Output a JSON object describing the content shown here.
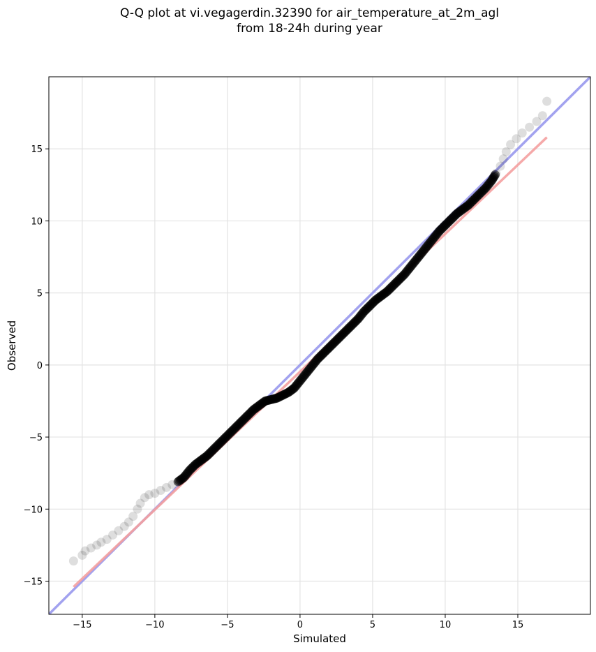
{
  "chart_data": {
    "type": "scatter",
    "title_line1": "Q-Q plot at vi.vegagerdin.32390 for air_temperature_at_2m_agl",
    "title_line2": "from 18-24h during year",
    "xlabel": "Simulated",
    "ylabel": "Observed",
    "xlim": [
      -17.3,
      20.0
    ],
    "ylim": [
      -17.3,
      20.0
    ],
    "xticks": [
      -15,
      -10,
      -5,
      0,
      5,
      10,
      15
    ],
    "yticks": [
      -15,
      -10,
      -5,
      0,
      5,
      10,
      15
    ],
    "xtick_labels": [
      "−15",
      "−10",
      "−5",
      "0",
      "5",
      "10",
      "15"
    ],
    "ytick_labels": [
      "−15",
      "−10",
      "−5",
      "0",
      "5",
      "10",
      "15"
    ],
    "grid": true,
    "lines": [
      {
        "role": "1:1 reference",
        "color": "#9999ee",
        "x": [
          -17.3,
          20.0
        ],
        "y": [
          -17.3,
          20.0
        ]
      },
      {
        "role": "fit",
        "color": "#f4a0a0",
        "x": [
          -15.6,
          17.0
        ],
        "y": [
          -15.4,
          15.8
        ]
      }
    ],
    "points": [
      {
        "x": -15.6,
        "y": -13.6
      },
      {
        "x": -15.0,
        "y": -13.2
      },
      {
        "x": -14.8,
        "y": -12.9
      },
      {
        "x": -14.4,
        "y": -12.7
      },
      {
        "x": -14.0,
        "y": -12.5
      },
      {
        "x": -13.7,
        "y": -12.3
      },
      {
        "x": -13.3,
        "y": -12.1
      },
      {
        "x": -12.9,
        "y": -11.8
      },
      {
        "x": -12.5,
        "y": -11.5
      },
      {
        "x": -12.1,
        "y": -11.2
      },
      {
        "x": -11.8,
        "y": -10.9
      },
      {
        "x": -11.5,
        "y": -10.5
      },
      {
        "x": -11.2,
        "y": -10.0
      },
      {
        "x": -11.0,
        "y": -9.6
      },
      {
        "x": -10.7,
        "y": -9.2
      },
      {
        "x": -10.4,
        "y": -9.0
      },
      {
        "x": -10.0,
        "y": -8.9
      },
      {
        "x": -9.6,
        "y": -8.7
      },
      {
        "x": -9.2,
        "y": -8.5
      },
      {
        "x": -8.8,
        "y": -8.3
      },
      {
        "x": -8.4,
        "y": -8.1
      },
      {
        "x": -8.0,
        "y": -7.8
      },
      {
        "x": -7.6,
        "y": -7.3
      },
      {
        "x": -7.2,
        "y": -6.9
      },
      {
        "x": -6.8,
        "y": -6.6
      },
      {
        "x": -6.4,
        "y": -6.3
      },
      {
        "x": -6.0,
        "y": -5.9
      },
      {
        "x": -5.6,
        "y": -5.5
      },
      {
        "x": -5.2,
        "y": -5.1
      },
      {
        "x": -4.8,
        "y": -4.7
      },
      {
        "x": -4.4,
        "y": -4.3
      },
      {
        "x": -4.0,
        "y": -3.9
      },
      {
        "x": -3.6,
        "y": -3.5
      },
      {
        "x": -3.2,
        "y": -3.1
      },
      {
        "x": -2.8,
        "y": -2.8
      },
      {
        "x": -2.4,
        "y": -2.5
      },
      {
        "x": -2.0,
        "y": -2.4
      },
      {
        "x": -1.6,
        "y": -2.3
      },
      {
        "x": -1.2,
        "y": -2.1
      },
      {
        "x": -0.8,
        "y": -1.9
      },
      {
        "x": -0.4,
        "y": -1.6
      },
      {
        "x": 0.0,
        "y": -1.1
      },
      {
        "x": 0.4,
        "y": -0.6
      },
      {
        "x": 0.8,
        "y": -0.1
      },
      {
        "x": 1.2,
        "y": 0.4
      },
      {
        "x": 1.6,
        "y": 0.8
      },
      {
        "x": 2.0,
        "y": 1.2
      },
      {
        "x": 2.4,
        "y": 1.6
      },
      {
        "x": 2.8,
        "y": 2.0
      },
      {
        "x": 3.2,
        "y": 2.4
      },
      {
        "x": 3.6,
        "y": 2.8
      },
      {
        "x": 4.0,
        "y": 3.2
      },
      {
        "x": 4.4,
        "y": 3.7
      },
      {
        "x": 4.8,
        "y": 4.1
      },
      {
        "x": 5.2,
        "y": 4.5
      },
      {
        "x": 5.6,
        "y": 4.8
      },
      {
        "x": 6.0,
        "y": 5.1
      },
      {
        "x": 6.4,
        "y": 5.5
      },
      {
        "x": 6.8,
        "y": 5.9
      },
      {
        "x": 7.2,
        "y": 6.3
      },
      {
        "x": 7.6,
        "y": 6.8
      },
      {
        "x": 8.0,
        "y": 7.3
      },
      {
        "x": 8.4,
        "y": 7.8
      },
      {
        "x": 8.8,
        "y": 8.3
      },
      {
        "x": 9.2,
        "y": 8.8
      },
      {
        "x": 9.6,
        "y": 9.3
      },
      {
        "x": 10.0,
        "y": 9.7
      },
      {
        "x": 10.4,
        "y": 10.1
      },
      {
        "x": 10.8,
        "y": 10.5
      },
      {
        "x": 11.2,
        "y": 10.8
      },
      {
        "x": 11.6,
        "y": 11.1
      },
      {
        "x": 12.0,
        "y": 11.5
      },
      {
        "x": 12.4,
        "y": 11.9
      },
      {
        "x": 12.8,
        "y": 12.3
      },
      {
        "x": 13.2,
        "y": 12.8
      },
      {
        "x": 13.5,
        "y": 13.3
      },
      {
        "x": 13.8,
        "y": 13.8
      },
      {
        "x": 14.0,
        "y": 14.3
      },
      {
        "x": 14.2,
        "y": 14.8
      },
      {
        "x": 14.5,
        "y": 15.3
      },
      {
        "x": 14.9,
        "y": 15.7
      },
      {
        "x": 15.3,
        "y": 16.1
      },
      {
        "x": 15.8,
        "y": 16.5
      },
      {
        "x": 16.3,
        "y": 16.9
      },
      {
        "x": 16.7,
        "y": 17.3
      },
      {
        "x": 17.0,
        "y": 18.3
      }
    ]
  }
}
